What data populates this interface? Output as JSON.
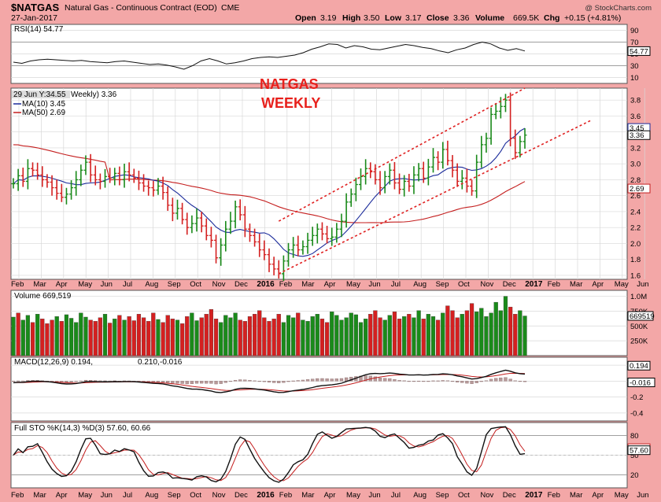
{
  "header": {
    "symbol": "$NATGAS",
    "description": "Natural Gas - Continuous Contract (EOD)",
    "exchange": "CME",
    "date": "27-Jan-2017",
    "credit": "@ StockCharts.com",
    "open_label": "Open",
    "open": "3.19",
    "high_label": "High",
    "high": "3.50",
    "low_label": "Low",
    "low": "3.17",
    "close_label": "Close",
    "close": "3.36",
    "volume_label": "Volume",
    "volume": "669.5K",
    "chg_label": "Chg",
    "chg": "+0.15 (+4.81%)"
  },
  "annotation": {
    "line1": "NATGAS",
    "line2": "WEEKLY"
  },
  "colors": {
    "background": "#f3a7a7",
    "panel": "#ffffff",
    "up": "#1a8a1a",
    "down": "#d42020",
    "ma10": "#1a2a9a",
    "ma50": "#c41e1e",
    "channel": "#e02020",
    "price_bar": "#1c1c1c"
  },
  "chart_data": {
    "type": "ohlc",
    "x_axis": {
      "months": [
        "Feb",
        "Mar",
        "Apr",
        "May",
        "Jun",
        "Jul",
        "Aug",
        "Sep",
        "Oct",
        "Nov",
        "Dec",
        "2016",
        "Feb",
        "Mar",
        "Apr",
        "May",
        "Jun",
        "Jul",
        "Aug",
        "Sep",
        "Oct",
        "Nov",
        "Dec",
        "2017",
        "Feb",
        "Mar",
        "Apr",
        "May",
        "Jun"
      ],
      "bold_months": [
        "2016",
        "2017"
      ]
    },
    "rsi": {
      "label": "RSI(14) 54.77",
      "last": "54.77",
      "ticks": [
        "90",
        "70",
        "50",
        "30",
        "10"
      ],
      "ylim": [
        0,
        100
      ],
      "levels": [
        70,
        30
      ],
      "values": [
        36,
        34,
        38,
        40,
        41,
        40,
        39,
        38,
        39,
        37,
        36,
        35,
        37,
        38,
        36,
        34,
        32,
        33,
        31,
        28,
        24,
        30,
        38,
        42,
        38,
        33,
        35,
        38,
        42,
        44,
        45,
        44,
        46,
        48,
        52,
        58,
        62,
        67,
        66,
        60,
        64,
        62,
        58,
        57,
        60,
        63,
        66,
        64,
        61,
        59,
        55,
        52,
        57,
        60,
        66,
        70,
        67,
        60,
        56,
        59,
        55
      ]
    },
    "price": {
      "tooltip": "29 Jun Y:34.55",
      "title_suffix": "Weekly) 3.36",
      "ma10_label": "MA(10) 3.45",
      "ma50_label": "MA(50) 2.69",
      "ticks": [
        "3.8",
        "3.6",
        "3.4",
        "3.2",
        "3.0",
        "2.8",
        "2.6",
        "2.4",
        "2.2",
        "2.0",
        "1.8",
        "1.6"
      ],
      "last_close": "3.36",
      "ma10_last": "3.45",
      "ma50_last": "2.69",
      "ylim": [
        1.55,
        3.95
      ],
      "close": [
        2.75,
        2.85,
        2.78,
        2.94,
        2.92,
        2.86,
        2.8,
        2.77,
        2.7,
        2.63,
        2.58,
        2.62,
        2.7,
        2.8,
        2.92,
        3.02,
        2.86,
        2.8,
        2.78,
        2.84,
        2.82,
        2.88,
        2.8,
        2.9,
        2.86,
        2.82,
        2.76,
        2.72,
        2.7,
        2.67,
        2.72,
        2.64,
        2.48,
        2.38,
        2.44,
        2.3,
        2.2,
        2.25,
        2.32,
        2.22,
        2.1,
        2.04,
        1.82,
        1.98,
        2.18,
        2.28,
        2.46,
        2.36,
        2.18,
        2.1,
        2.02,
        1.92,
        1.86,
        1.74,
        1.68,
        1.62,
        1.78,
        1.92,
        1.98,
        1.92,
        1.96,
        2.04,
        2.1,
        2.18,
        2.12,
        2.06,
        2.08,
        2.18,
        2.28,
        2.52,
        2.62,
        2.74,
        2.84,
        2.94,
        2.9,
        2.8,
        2.7,
        2.84,
        2.92,
        2.76,
        2.68,
        2.78,
        2.72,
        2.86,
        2.94,
        2.82,
        2.96,
        3.08,
        3.02,
        3.18,
        3.04,
        2.92,
        2.78,
        2.82,
        2.72,
        2.66,
        3.02,
        3.24,
        3.32,
        3.62,
        3.66,
        3.72,
        3.8,
        3.32,
        3.14,
        3.28,
        3.36
      ]
    },
    "volume": {
      "label": "Volume 669,519",
      "ticks": [
        "1.0M",
        "750K",
        "500K",
        "250K"
      ],
      "last": "669519",
      "ylim": [
        0,
        1100000
      ],
      "values": [
        650,
        720,
        600,
        680,
        560,
        700,
        620,
        540,
        600,
        660,
        580,
        690,
        630,
        560,
        720,
        650,
        600,
        580,
        640,
        700,
        550,
        620,
        680,
        600,
        660,
        590,
        700,
        640,
        580,
        720,
        610,
        560,
        680,
        620,
        600,
        540,
        660,
        720,
        590,
        640,
        700,
        780,
        620,
        560,
        680,
        640,
        720,
        600,
        580,
        660,
        700,
        760,
        640,
        580,
        620,
        700,
        560,
        680,
        640,
        720,
        600,
        580,
        660,
        700,
        620,
        560,
        740,
        680,
        600,
        640,
        720,
        690,
        560,
        620,
        700,
        760,
        640,
        600,
        680,
        740,
        620,
        660,
        700,
        640,
        760,
        620,
        700,
        660,
        600,
        720,
        840,
        760,
        640,
        700,
        760,
        880,
        740,
        800,
        660,
        720,
        900,
        760,
        1000,
        820,
        700,
        760,
        669
      ],
      "up": [
        1,
        0,
        1,
        1,
        0,
        1,
        0,
        0,
        0,
        1,
        0,
        1,
        1,
        1,
        1,
        1,
        0,
        0,
        0,
        1,
        0,
        1,
        0,
        1,
        0,
        0,
        0,
        0,
        0,
        0,
        1,
        0,
        0,
        0,
        1,
        0,
        0,
        1,
        1,
        0,
        0,
        0,
        0,
        1,
        1,
        1,
        1,
        0,
        0,
        0,
        0,
        0,
        0,
        0,
        0,
        0,
        1,
        1,
        1,
        0,
        1,
        1,
        1,
        1,
        0,
        0,
        1,
        1,
        1,
        1,
        1,
        1,
        1,
        1,
        0,
        0,
        0,
        1,
        1,
        0,
        0,
        1,
        0,
        1,
        1,
        0,
        1,
        1,
        0,
        1,
        0,
        0,
        0,
        1,
        0,
        0,
        1,
        1,
        1,
        1,
        1,
        1,
        1,
        0,
        0,
        1,
        1
      ]
    },
    "macd": {
      "label": "MACD(12,26,9) 0.194, 0.210, -0.016",
      "macd_label": "MACD(12,26,9)",
      "macd_last": "0.194",
      "signal_last": "0.210",
      "hist_last": "-0.016",
      "ticks": [
        "0.2",
        "0.0",
        "-0.2",
        "-0.4"
      ],
      "ylim": [
        -0.5,
        0.3
      ]
    },
    "sto": {
      "label": "Full STO %K(14,3) %D(3) 57.60, 60.66",
      "k_last": "57.60",
      "d_last": "60.66",
      "ticks": [
        "80",
        "50",
        "20"
      ],
      "ylim": [
        0,
        100
      ],
      "levels": [
        80,
        20
      ]
    }
  }
}
